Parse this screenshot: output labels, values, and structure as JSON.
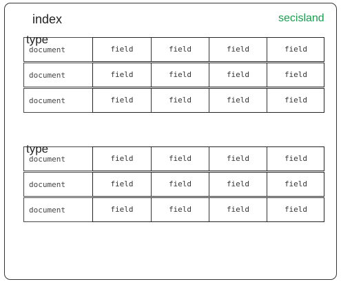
{
  "header": {
    "index_label": "index",
    "brand": "secisland"
  },
  "groups": [
    {
      "type_label": "type",
      "rows": [
        {
          "document": "document",
          "fields": [
            "field",
            "field",
            "field",
            "field"
          ]
        },
        {
          "document": "document",
          "fields": [
            "field",
            "field",
            "field",
            "field"
          ]
        },
        {
          "document": "document",
          "fields": [
            "field",
            "field",
            "field",
            "field"
          ]
        }
      ]
    },
    {
      "type_label": "type",
      "rows": [
        {
          "document": "document",
          "fields": [
            "field",
            "field",
            "field",
            "field"
          ]
        },
        {
          "document": "document",
          "fields": [
            "field",
            "field",
            "field",
            "field"
          ]
        },
        {
          "document": "document",
          "fields": [
            "field",
            "field",
            "field",
            "field"
          ]
        }
      ]
    }
  ]
}
